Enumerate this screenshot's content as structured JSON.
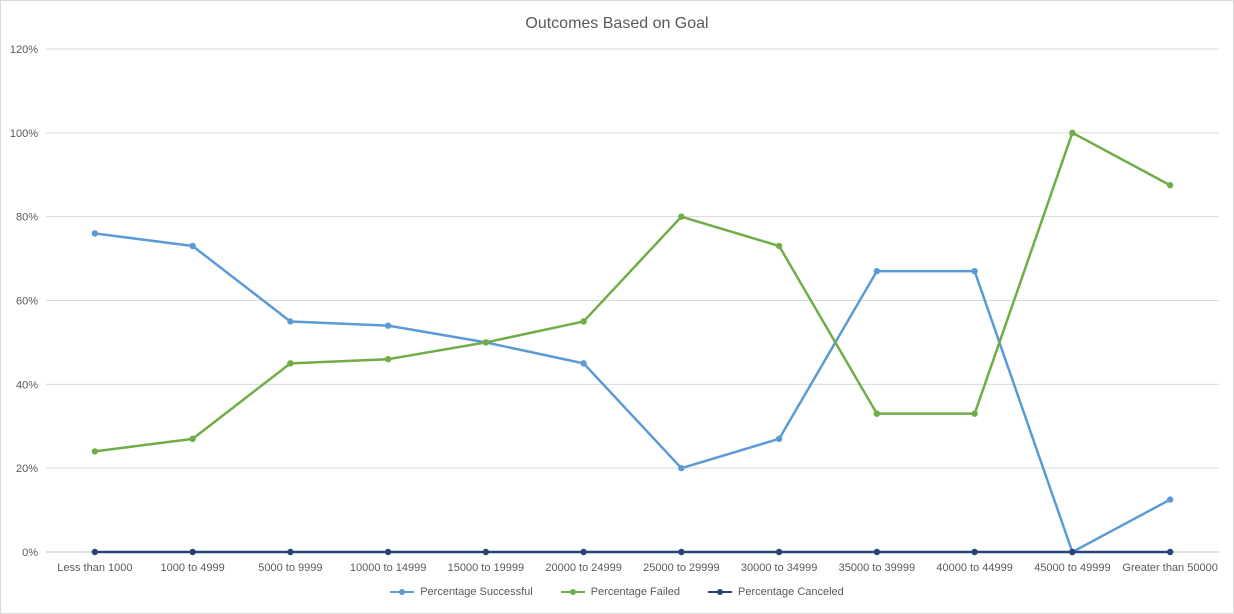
{
  "chart_data": {
    "type": "line",
    "title": "Outcomes Based on Goal",
    "xlabel": "",
    "ylabel": "",
    "categories": [
      "Less than 1000",
      "1000 to 4999",
      "5000 to 9999",
      "10000 to 14999",
      "15000 to 19999",
      "20000 to 24999",
      "25000 to 29999",
      "30000 to 34999",
      "35000 to 39999",
      "40000 to 44999",
      "45000 to 49999",
      "Greater than 50000"
    ],
    "ylim": [
      0,
      120
    ],
    "yticks": [
      0,
      20,
      40,
      60,
      80,
      100,
      120
    ],
    "ytick_labels": [
      "0%",
      "20%",
      "40%",
      "60%",
      "80%",
      "100%",
      "120%"
    ],
    "grid": true,
    "legend_position": "bottom",
    "series": [
      {
        "name": "Percentage Successful",
        "color": "#5b9bd5",
        "values": [
          76,
          73,
          55,
          54,
          50,
          45,
          20,
          27,
          67,
          67,
          0,
          12.5
        ]
      },
      {
        "name": "Percentage Failed",
        "color": "#70ad47",
        "values": [
          24,
          27,
          45,
          46,
          50,
          55,
          80,
          73,
          33,
          33,
          100,
          87.5
        ]
      },
      {
        "name": "Percentage Canceled",
        "color": "#264478",
        "values": [
          0,
          0,
          0,
          0,
          0,
          0,
          0,
          0,
          0,
          0,
          0,
          0
        ]
      }
    ]
  }
}
